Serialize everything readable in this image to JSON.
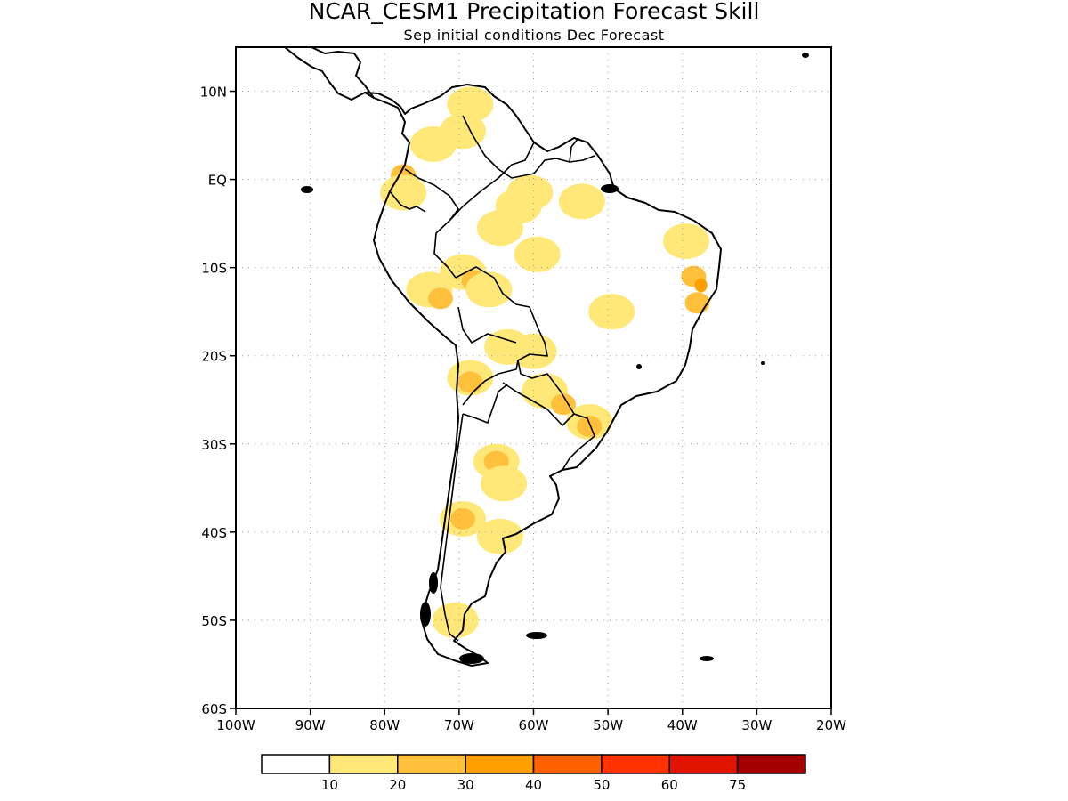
{
  "title": "NCAR_CESM1 Precipitation Forecast Skill",
  "subtitle": "Sep initial conditions  Dec Forecast",
  "map": {
    "region": "South America",
    "lon_range": [
      -100,
      -20
    ],
    "lat_range": [
      -60,
      15
    ],
    "lat_ticks": [
      {
        "value": 10,
        "label": "10N"
      },
      {
        "value": 0,
        "label": "EQ"
      },
      {
        "value": -10,
        "label": "10S"
      },
      {
        "value": -20,
        "label": "20S"
      },
      {
        "value": -30,
        "label": "30S"
      },
      {
        "value": -40,
        "label": "40S"
      },
      {
        "value": -50,
        "label": "50S"
      },
      {
        "value": -60,
        "label": "60S"
      }
    ],
    "lon_ticks": [
      {
        "value": -100,
        "label": "100W"
      },
      {
        "value": -90,
        "label": "90W"
      },
      {
        "value": -80,
        "label": "80W"
      },
      {
        "value": -70,
        "label": "70W"
      },
      {
        "value": -60,
        "label": "60W"
      },
      {
        "value": -50,
        "label": "50W"
      },
      {
        "value": -40,
        "label": "40W"
      },
      {
        "value": -30,
        "label": "30W"
      },
      {
        "value": -20,
        "label": "20W"
      }
    ],
    "grid": true,
    "skill_regions": [
      {
        "lon": -77.5,
        "lat": 0.5,
        "level": 2
      },
      {
        "lon": -77.5,
        "lat": -1.5,
        "level": 1
      },
      {
        "lon": -69.5,
        "lat": 5.5,
        "level": 1
      },
      {
        "lon": -73.5,
        "lat": 4.0,
        "level": 1
      },
      {
        "lon": -68.5,
        "lat": 8.5,
        "level": 1
      },
      {
        "lon": -60.5,
        "lat": -1.5,
        "level": 1
      },
      {
        "lon": -64.5,
        "lat": -5.5,
        "level": 1
      },
      {
        "lon": -59.5,
        "lat": -8.5,
        "level": 1
      },
      {
        "lon": -69.5,
        "lat": -10.5,
        "level": 1
      },
      {
        "lon": -68.0,
        "lat": -11.5,
        "level": 2
      },
      {
        "lon": -66.0,
        "lat": -12.5,
        "level": 1
      },
      {
        "lon": -74.0,
        "lat": -12.5,
        "level": 1
      },
      {
        "lon": -72.5,
        "lat": -13.5,
        "level": 2
      },
      {
        "lon": -63.5,
        "lat": -19.0,
        "level": 1
      },
      {
        "lon": -60.0,
        "lat": -19.5,
        "level": 1
      },
      {
        "lon": -68.5,
        "lat": -22.5,
        "level": 1
      },
      {
        "lon": -68.5,
        "lat": -23.0,
        "level": 2
      },
      {
        "lon": -58.5,
        "lat": -24.0,
        "level": 1
      },
      {
        "lon": -56.0,
        "lat": -25.5,
        "level": 2
      },
      {
        "lon": -52.5,
        "lat": -27.5,
        "level": 1
      },
      {
        "lon": -52.5,
        "lat": -28.0,
        "level": 2
      },
      {
        "lon": -65.0,
        "lat": -32.0,
        "level": 1
      },
      {
        "lon": -65.0,
        "lat": -32.0,
        "level": 2
      },
      {
        "lon": -64.0,
        "lat": -34.5,
        "level": 1
      },
      {
        "lon": -69.5,
        "lat": -38.5,
        "level": 1
      },
      {
        "lon": -69.5,
        "lat": -38.5,
        "level": 2
      },
      {
        "lon": -64.5,
        "lat": -40.5,
        "level": 1
      },
      {
        "lon": -70.5,
        "lat": -50.0,
        "level": 1
      },
      {
        "lon": -49.5,
        "lat": -15.0,
        "level": 1
      },
      {
        "lon": -39.5,
        "lat": -7.0,
        "level": 1
      },
      {
        "lon": -38.5,
        "lat": -11.0,
        "level": 2
      },
      {
        "lon": -37.5,
        "lat": -12.0,
        "level": 3
      },
      {
        "lon": -38.0,
        "lat": -14.0,
        "level": 2
      },
      {
        "lon": -53.5,
        "lat": -2.5,
        "level": 1
      },
      {
        "lon": -62.0,
        "lat": -3.0,
        "level": 1
      }
    ]
  },
  "colorbar": {
    "colors": [
      "#ffffff",
      "#ffe878",
      "#ffc03c",
      "#ffa000",
      "#ff6000",
      "#ff3200",
      "#e11400",
      "#a50000"
    ],
    "labels": [
      "10",
      "20",
      "30",
      "40",
      "50",
      "60",
      "75"
    ]
  }
}
